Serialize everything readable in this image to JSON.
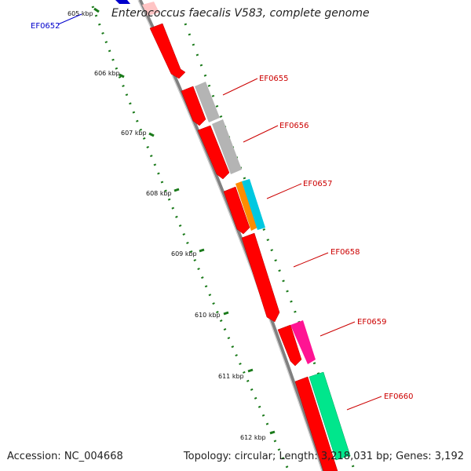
{
  "title": "Enterococcus faecalis V583, complete genome",
  "accession": "Accession: NC_004668",
  "topology": "Topology: circular; Length: 3,218,031 bp; Genes: 3,192",
  "kbp_ticks": [
    "605 kbp",
    "606 kbp",
    "607 kbp",
    "608 kbp",
    "609 kbp",
    "610 kbp",
    "611 kbp",
    "612 kbp"
  ],
  "gene_labels": [
    {
      "name": "EF0652",
      "color": "#0000cc"
    },
    {
      "name": "EF0655",
      "color": "#cc0000"
    },
    {
      "name": "EF0656",
      "color": "#cc0000"
    },
    {
      "name": "EF0657",
      "color": "#cc0000"
    },
    {
      "name": "EF0658",
      "color": "#cc0000"
    },
    {
      "name": "EF0659",
      "color": "#cc0000"
    },
    {
      "name": "EF0660",
      "color": "#cc0000"
    }
  ],
  "colors": {
    "cds": "#ff0000",
    "hypothetical": "#b4b4b4",
    "transport": "#ff8c00",
    "membrane": "#00c8e0",
    "regulatory": "#ff1493",
    "mobile": "#00e68c",
    "tick": "#1a7a1a",
    "backbone": "#808080"
  }
}
